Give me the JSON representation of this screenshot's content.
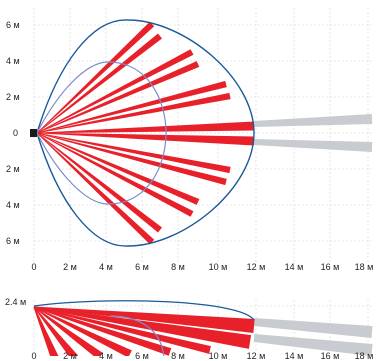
{
  "top_view": {
    "y_axis_labels": [
      "6 м",
      "4 м",
      "2 м",
      "0",
      "2 м",
      "4 м",
      "6 м"
    ],
    "x_axis_labels": [
      "0",
      "2 м",
      "4 м",
      "6 м",
      "8 м",
      "10 м",
      "12 м",
      "14 м",
      "16 м",
      "18 м"
    ]
  },
  "side_view": {
    "height_label": "2.4 м",
    "x_axis_labels": [
      "0",
      "2 м",
      "4 м",
      "6 м",
      "8 м",
      "10 м",
      "12 м",
      "14 м",
      "16 м",
      "18 м"
    ]
  },
  "colors": {
    "beam_red": "#e8202a",
    "beam_gray": "#c8ccd0",
    "outer_zone": "#1a5a9a",
    "inner_zone": "#7b8ccc",
    "sensor": "#1a1a1a",
    "grid": "#d2d2d2"
  },
  "icons": {
    "sensor": "sensor-square"
  }
}
